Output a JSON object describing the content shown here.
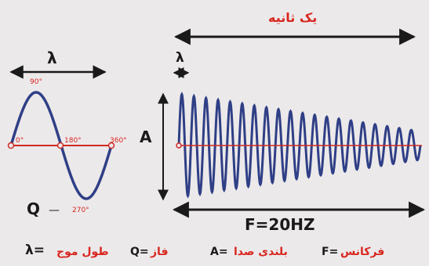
{
  "diagram": {
    "top_label": "یک ثانیه",
    "lambda_left": "λ",
    "lambda_small": "λ",
    "phase_labels": [
      "0°",
      "90°",
      "180°",
      "360°",
      "270°"
    ],
    "amplitude_label": "A",
    "phase_letter": "Q",
    "frequency_label": "F=20HZ"
  },
  "legend": {
    "frequency_term": "فرکانس",
    "frequency_symbol": "F=",
    "loudness_term": "بلندی صدا",
    "loudness_symbol": "A=",
    "phase_term": "فاز",
    "phase_symbol": "Q=",
    "wavelength_term": "طول موج",
    "wavelength_symbol": "λ="
  },
  "colors": {
    "wave": "#2f3f86",
    "axis_red": "#cf2a22",
    "arrow": "#1a1a1a"
  },
  "wave_cycles_right": 20
}
